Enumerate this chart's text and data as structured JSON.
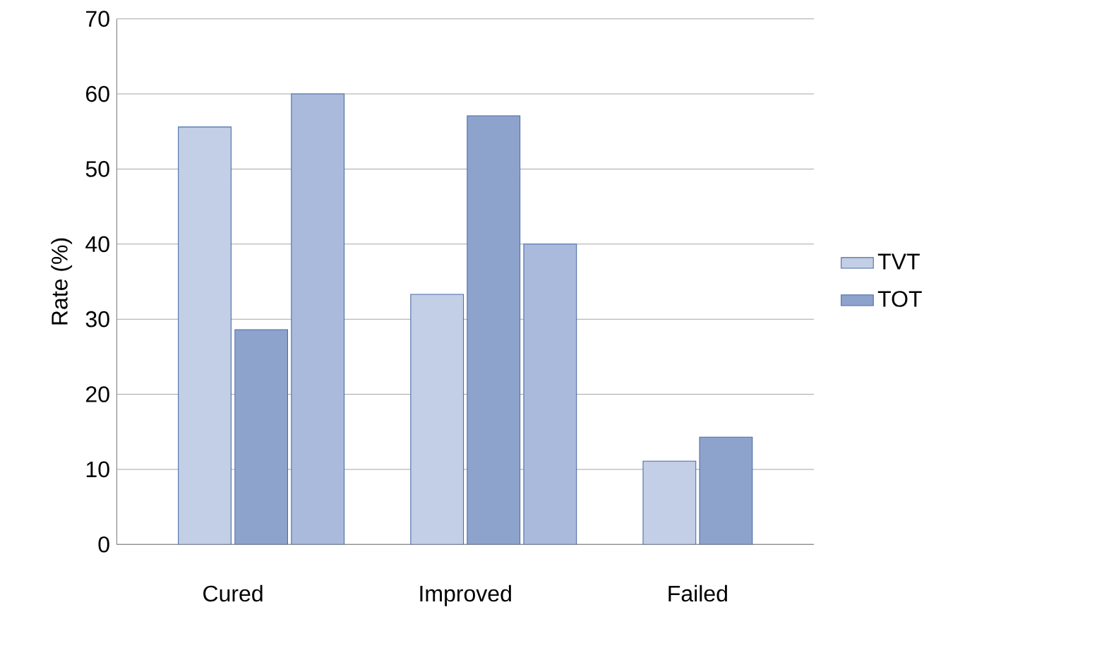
{
  "chart_data": {
    "type": "bar",
    "ylabel": "Rate (%)",
    "categories": [
      "Cured",
      "Improved",
      "Failed"
    ],
    "series": [
      {
        "name": "TVT",
        "color": "#c3cfe6",
        "values": [
          55.6,
          33.3,
          11.1
        ]
      },
      {
        "name": "TOT",
        "color": "#8ea3cc",
        "values": [
          28.6,
          57.1,
          14.3
        ]
      },
      {
        "color": "#a9badc",
        "values": [
          60.0,
          40.0,
          null
        ]
      }
    ],
    "ylim": [
      0,
      70
    ],
    "yticks": [
      0,
      10,
      20,
      30,
      40,
      50,
      60,
      70
    ],
    "grid": "y",
    "legend": "right"
  }
}
